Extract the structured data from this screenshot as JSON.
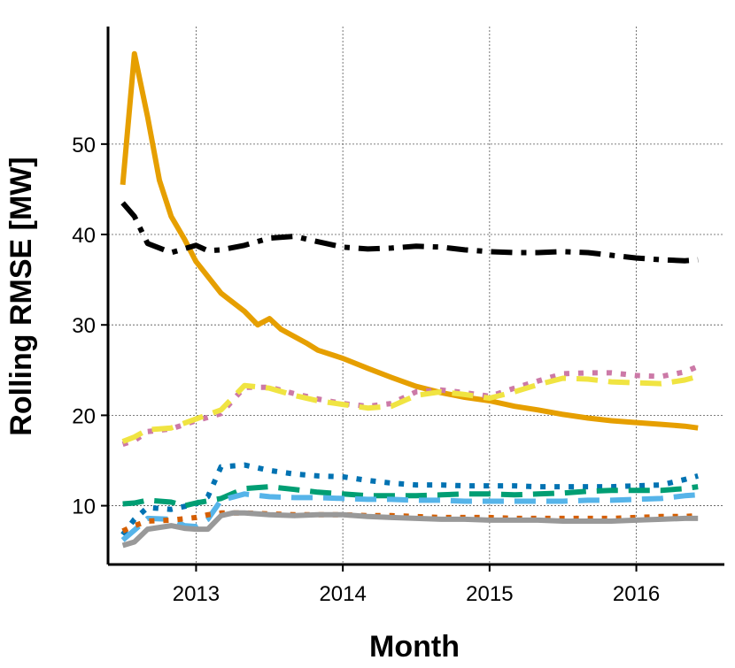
{
  "chart_data": {
    "type": "line",
    "title": "",
    "xlabel": "Month",
    "ylabel": "Rolling RMSE [MW]",
    "xlim": [
      2012.4,
      2016.6
    ],
    "ylim": [
      3.5,
      63
    ],
    "x_ticks": [
      2013,
      2014,
      2015,
      2016
    ],
    "x_tick_labels": [
      "2013",
      "2014",
      "2015",
      "2016"
    ],
    "y_ticks": [
      10,
      20,
      30,
      40,
      50
    ],
    "y_tick_labels": [
      "10",
      "20",
      "30",
      "40",
      "50"
    ],
    "grid": true,
    "legend": "none",
    "series": [
      {
        "name": "orange-solid",
        "color": "#E69F00",
        "dash": "solid",
        "x": [
          2012.5,
          2012.58,
          2012.67,
          2012.75,
          2012.83,
          2012.92,
          2013.0,
          2013.17,
          2013.33,
          2013.42,
          2013.5,
          2013.58,
          2013.75,
          2013.83,
          2014.0,
          2014.17,
          2014.33,
          2014.5,
          2014.67,
          2014.83,
          2015.0,
          2015.17,
          2015.33,
          2015.5,
          2015.67,
          2015.83,
          2016.0,
          2016.17,
          2016.33,
          2016.42
        ],
        "values": [
          45.5,
          60,
          53,
          46,
          42,
          39.5,
          37,
          33.5,
          31.5,
          30,
          30.7,
          29.5,
          28,
          27.2,
          26.3,
          25.2,
          24.2,
          23.2,
          22.5,
          22,
          21.6,
          21,
          20.6,
          20.1,
          19.7,
          19.4,
          19.2,
          19,
          18.8,
          18.6
        ]
      },
      {
        "name": "black-dashdot",
        "color": "#000000",
        "dash": "dashdot",
        "x": [
          2012.5,
          2012.58,
          2012.67,
          2012.83,
          2013.0,
          2013.08,
          2013.17,
          2013.33,
          2013.5,
          2013.67,
          2013.83,
          2014.0,
          2014.17,
          2014.33,
          2014.5,
          2014.67,
          2014.83,
          2015.0,
          2015.17,
          2015.33,
          2015.5,
          2015.67,
          2015.83,
          2016.0,
          2016.17,
          2016.33,
          2016.42
        ],
        "values": [
          43.5,
          42,
          39,
          38,
          38.8,
          38.2,
          38.3,
          38.8,
          39.6,
          39.8,
          39.2,
          38.6,
          38.4,
          38.5,
          38.7,
          38.6,
          38.3,
          38.1,
          38,
          38,
          38.1,
          38,
          37.7,
          37.4,
          37.2,
          37.1,
          37.2
        ]
      },
      {
        "name": "pink-dotted",
        "color": "#CC79A7",
        "dash": "dotted",
        "x": [
          2012.5,
          2012.58,
          2012.67,
          2012.83,
          2013.0,
          2013.17,
          2013.33,
          2013.5,
          2013.67,
          2013.83,
          2014.0,
          2014.17,
          2014.33,
          2014.5,
          2014.67,
          2014.83,
          2015.0,
          2015.17,
          2015.33,
          2015.5,
          2015.67,
          2015.83,
          2016.0,
          2016.17,
          2016.33,
          2016.42
        ],
        "values": [
          16.8,
          17.2,
          18.2,
          18.5,
          19.4,
          20.2,
          23.1,
          23.1,
          22.4,
          21.8,
          21.3,
          21.0,
          21.3,
          22.6,
          22.8,
          22.5,
          22.1,
          23.0,
          23.8,
          24.6,
          24.7,
          24.7,
          24.4,
          24.3,
          24.8,
          25.4
        ]
      },
      {
        "name": "yellow-dashed",
        "color": "#F0E442",
        "dash": "dashed",
        "x": [
          2012.5,
          2012.58,
          2012.67,
          2012.83,
          2013.0,
          2013.17,
          2013.33,
          2013.5,
          2013.67,
          2013.83,
          2014.0,
          2014.17,
          2014.33,
          2014.5,
          2014.67,
          2014.83,
          2015.0,
          2015.17,
          2015.33,
          2015.5,
          2015.67,
          2015.83,
          2016.0,
          2016.17,
          2016.33,
          2016.42
        ],
        "values": [
          17.1,
          17.6,
          18.4,
          18.6,
          19.6,
          20.6,
          23.3,
          23.0,
          22.2,
          21.6,
          21.2,
          20.8,
          21.0,
          22.2,
          22.6,
          22.3,
          21.9,
          22.6,
          23.4,
          24.1,
          24.0,
          23.7,
          23.6,
          23.5,
          23.9,
          24.3
        ]
      },
      {
        "name": "blue-dotted",
        "color": "#0072B2",
        "dash": "dotted",
        "x": [
          2012.5,
          2012.58,
          2012.67,
          2012.83,
          2013.0,
          2013.08,
          2013.17,
          2013.33,
          2013.5,
          2013.67,
          2013.83,
          2014.0,
          2014.17,
          2014.33,
          2014.5,
          2014.67,
          2014.83,
          2015.0,
          2015.17,
          2015.33,
          2015.5,
          2015.67,
          2015.83,
          2016.0,
          2016.17,
          2016.33,
          2016.42
        ],
        "values": [
          6.8,
          8.5,
          9.8,
          9.6,
          10.2,
          11.0,
          14.3,
          14.5,
          13.9,
          13.5,
          13.3,
          13.2,
          12.8,
          12.5,
          12.3,
          12.3,
          12.2,
          12.2,
          12.2,
          12.1,
          12.1,
          12.1,
          12.1,
          12.2,
          12.3,
          12.9,
          13.3
        ]
      },
      {
        "name": "green-dashed",
        "color": "#009E73",
        "dash": "dashed",
        "x": [
          2012.5,
          2012.58,
          2012.67,
          2012.83,
          2012.92,
          2013.0,
          2013.17,
          2013.33,
          2013.5,
          2013.67,
          2013.83,
          2014.0,
          2014.17,
          2014.33,
          2014.5,
          2014.67,
          2014.83,
          2015.0,
          2015.17,
          2015.33,
          2015.5,
          2015.67,
          2015.83,
          2016.0,
          2016.17,
          2016.33,
          2016.42
        ],
        "values": [
          10.2,
          10.3,
          10.6,
          10.4,
          10.0,
          10.3,
          10.8,
          11.9,
          12.1,
          11.8,
          11.5,
          11.3,
          11.1,
          11.1,
          11.1,
          11.2,
          11.3,
          11.3,
          11.2,
          11.3,
          11.4,
          11.6,
          11.7,
          11.7,
          11.7,
          11.9,
          12.1
        ]
      },
      {
        "name": "skyblue-dashed",
        "color": "#56B4E9",
        "dash": "dashed",
        "x": [
          2012.5,
          2012.58,
          2012.67,
          2012.83,
          2012.92,
          2013.0,
          2013.08,
          2013.17,
          2013.33,
          2013.5,
          2013.67,
          2013.83,
          2014.0,
          2014.17,
          2014.33,
          2014.5,
          2014.67,
          2014.83,
          2015.0,
          2015.17,
          2015.33,
          2015.5,
          2015.67,
          2015.83,
          2016.0,
          2016.17,
          2016.33,
          2016.42
        ],
        "values": [
          6.2,
          7.3,
          8.6,
          8.5,
          7.8,
          7.7,
          8.5,
          10.6,
          11.3,
          11.0,
          10.9,
          10.9,
          10.8,
          10.7,
          10.7,
          10.6,
          10.6,
          10.5,
          10.5,
          10.5,
          10.5,
          10.5,
          10.6,
          10.6,
          10.7,
          10.8,
          11.1,
          11.2
        ]
      },
      {
        "name": "vermillion-dotted",
        "color": "#D55E00",
        "dash": "dotted",
        "x": [
          2012.5,
          2012.58,
          2012.67,
          2012.83,
          2013.0,
          2013.08,
          2013.17,
          2013.33,
          2013.5,
          2013.67,
          2013.83,
          2014.0,
          2014.17,
          2014.33,
          2014.5,
          2014.67,
          2014.83,
          2015.0,
          2015.17,
          2015.33,
          2015.5,
          2015.67,
          2015.83,
          2016.0,
          2016.17,
          2016.33,
          2016.42
        ],
        "values": [
          7.2,
          7.8,
          8.3,
          8.4,
          8.7,
          9.0,
          9.2,
          9.2,
          9.1,
          9.0,
          9.0,
          9.0,
          8.9,
          8.9,
          8.8,
          8.7,
          8.7,
          8.7,
          8.6,
          8.6,
          8.6,
          8.6,
          8.6,
          8.7,
          8.8,
          8.8,
          8.9
        ]
      },
      {
        "name": "gray-solid",
        "color": "#999999",
        "dash": "solid",
        "x": [
          2012.5,
          2012.58,
          2012.67,
          2012.83,
          2012.92,
          2013.0,
          2013.08,
          2013.17,
          2013.25,
          2013.33,
          2013.5,
          2013.67,
          2013.83,
          2014.0,
          2014.17,
          2014.33,
          2014.5,
          2014.67,
          2014.83,
          2015.0,
          2015.17,
          2015.33,
          2015.5,
          2015.67,
          2015.83,
          2016.0,
          2016.17,
          2016.33,
          2016.42
        ],
        "values": [
          5.6,
          6.0,
          7.4,
          7.8,
          7.5,
          7.4,
          7.4,
          8.9,
          9.2,
          9.2,
          9.0,
          8.9,
          9.0,
          9.0,
          8.8,
          8.7,
          8.6,
          8.5,
          8.5,
          8.4,
          8.4,
          8.4,
          8.3,
          8.3,
          8.3,
          8.4,
          8.5,
          8.6,
          8.6
        ]
      }
    ]
  }
}
